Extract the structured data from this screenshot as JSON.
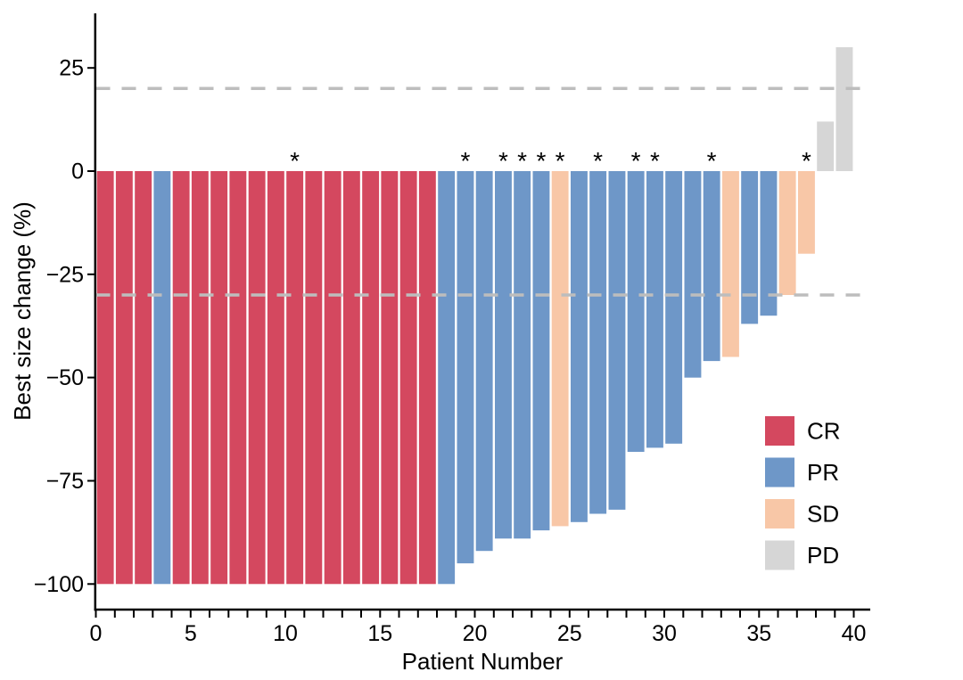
{
  "chart_data": {
    "type": "bar",
    "variant": "waterfall",
    "title": "",
    "xlabel": "Patient Number",
    "ylabel": "Best size change (%)",
    "x_tick_labels": [
      0,
      5,
      10,
      15,
      20,
      25,
      30,
      35,
      40
    ],
    "x_minor_tick_every": 1,
    "y_ticks": [
      25,
      0,
      -25,
      -50,
      -75,
      -100
    ],
    "xlim": [
      0,
      40.8
    ],
    "ylim": [
      -106,
      38
    ],
    "grid": false,
    "marker_symbol": "*",
    "reference_lines": {
      "style": "dashed",
      "color": "#BDBDBD",
      "values": [
        20,
        -30
      ]
    },
    "legend": {
      "position": "right-middle",
      "entries": [
        {
          "label": "CR",
          "color": "#D4485F"
        },
        {
          "label": "PR",
          "color": "#6E97C8"
        },
        {
          "label": "SD",
          "color": "#F8C7A7"
        },
        {
          "label": "PD",
          "color": "#D6D6D6"
        }
      ]
    },
    "patients": [
      {
        "patient": 1,
        "value": -100,
        "response": "CR",
        "marked": false
      },
      {
        "patient": 2,
        "value": -100,
        "response": "CR",
        "marked": false
      },
      {
        "patient": 3,
        "value": -100,
        "response": "CR",
        "marked": false
      },
      {
        "patient": 4,
        "value": -100,
        "response": "PR",
        "marked": false
      },
      {
        "patient": 5,
        "value": -100,
        "response": "CR",
        "marked": false
      },
      {
        "patient": 6,
        "value": -100,
        "response": "CR",
        "marked": false
      },
      {
        "patient": 7,
        "value": -100,
        "response": "CR",
        "marked": false
      },
      {
        "patient": 8,
        "value": -100,
        "response": "CR",
        "marked": false
      },
      {
        "patient": 9,
        "value": -100,
        "response": "CR",
        "marked": false
      },
      {
        "patient": 10,
        "value": -100,
        "response": "CR",
        "marked": false
      },
      {
        "patient": 11,
        "value": -100,
        "response": "CR",
        "marked": true
      },
      {
        "patient": 12,
        "value": -100,
        "response": "CR",
        "marked": false
      },
      {
        "patient": 13,
        "value": -100,
        "response": "CR",
        "marked": false
      },
      {
        "pat": 14,
        "patient": 14,
        "value": -100,
        "response": "CR",
        "marked": false
      },
      {
        "patient": 15,
        "value": -100,
        "response": "CR",
        "marked": false
      },
      {
        "patient": 16,
        "value": -100,
        "response": "CR",
        "marked": false
      },
      {
        "patient": 17,
        "value": -100,
        "response": "CR",
        "marked": false
      },
      {
        "patient": 18,
        "value": -100,
        "response": "CR",
        "marked": false
      },
      {
        "patient": 19,
        "value": -100,
        "response": "PR",
        "marked": false
      },
      {
        "patient": 20,
        "value": -95,
        "response": "PR",
        "marked": true
      },
      {
        "patient": 21,
        "value": -92,
        "response": "PR",
        "marked": false
      },
      {
        "patient": 22,
        "value": -89,
        "response": "PR",
        "marked": true
      },
      {
        "patient": 23,
        "value": -89,
        "response": "PR",
        "marked": true
      },
      {
        "patient": 24,
        "value": -87,
        "response": "PR",
        "marked": true
      },
      {
        "patient": 25,
        "value": -86,
        "response": "SD",
        "marked": true
      },
      {
        "patient": 26,
        "value": -85,
        "response": "PR",
        "marked": false
      },
      {
        "patient": 27,
        "value": -83,
        "response": "PR",
        "marked": true
      },
      {
        "patient": 28,
        "value": -82,
        "response": "PR",
        "marked": false
      },
      {
        "patient": 29,
        "value": -68,
        "response": "PR",
        "marked": true
      },
      {
        "patient": 30,
        "value": -67,
        "response": "PR",
        "marked": true
      },
      {
        "patient": 31,
        "value": -66,
        "response": "PR",
        "marked": false
      },
      {
        "patient": 32,
        "value": -50,
        "response": "PR",
        "marked": false
      },
      {
        "patient": 33,
        "value": -46,
        "response": "PR",
        "marked": true
      },
      {
        "patient": 34,
        "value": -45,
        "response": "SD",
        "marked": false
      },
      {
        "patient": 35,
        "value": -37,
        "response": "PR",
        "marked": false
      },
      {
        "patient": 36,
        "value": -35,
        "response": "PR",
        "marked": false
      },
      {
        "patient": 37,
        "value": -30,
        "response": "SD",
        "marked": false
      },
      {
        "patient": 38,
        "value": -20,
        "response": "SD",
        "marked": true
      },
      {
        "patient": 39,
        "value": 12,
        "response": "PD",
        "marked": false
      },
      {
        "patient": 40,
        "value": 30,
        "response": "PD",
        "marked": false
      }
    ]
  }
}
